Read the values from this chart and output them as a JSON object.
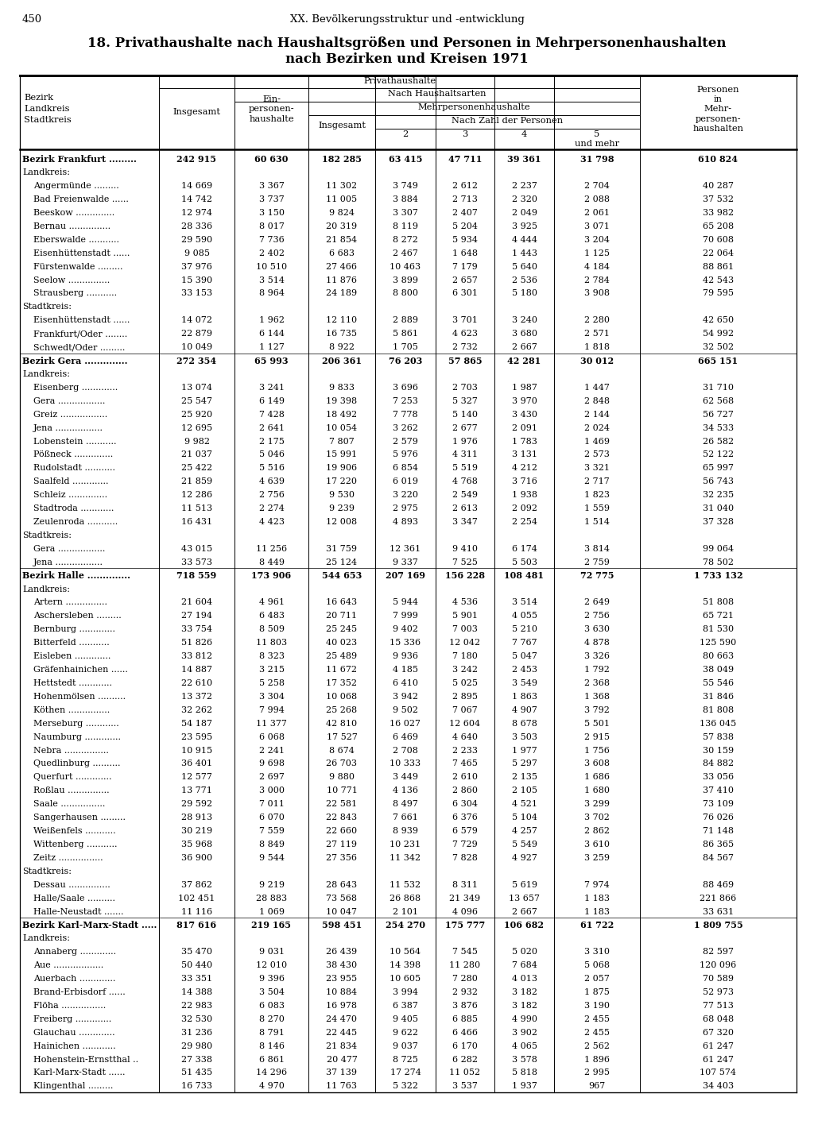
{
  "page_number": "450",
  "header_line": "XX. Bevölkerungsstruktur und -entwicklung",
  "title_line1": "18. Privathaushalte nach Haushaltsgrößen und Personen in Mehrpersonenhaushalten",
  "title_line2": "nach Bezirken und Kreisen 1971",
  "rows": [
    {
      "name": "Bezirk Frankfurt .........",
      "bold": true,
      "indent": 0,
      "vals": [
        "242 915",
        "60 630",
        "182 285",
        "63 415",
        "47 711",
        "39 361",
        "31 798",
        "610 824"
      ]
    },
    {
      "name": "Landkreis:",
      "bold": false,
      "indent": 0,
      "vals": [
        "",
        "",
        "",
        "",
        "",
        "",
        "",
        ""
      ],
      "header": true
    },
    {
      "name": "Angermünde .........",
      "bold": false,
      "indent": 1,
      "vals": [
        "14 669",
        "3 367",
        "11 302",
        "3 749",
        "2 612",
        "2 237",
        "2 704",
        "40 287"
      ]
    },
    {
      "name": "Bad Freienwalde ......",
      "bold": false,
      "indent": 1,
      "vals": [
        "14 742",
        "3 737",
        "11 005",
        "3 884",
        "2 713",
        "2 320",
        "2 088",
        "37 532"
      ]
    },
    {
      "name": "Beeskow ..............",
      "bold": false,
      "indent": 1,
      "vals": [
        "12 974",
        "3 150",
        "9 824",
        "3 307",
        "2 407",
        "2 049",
        "2 061",
        "33 982"
      ]
    },
    {
      "name": "Bernau ...............",
      "bold": false,
      "indent": 1,
      "vals": [
        "28 336",
        "8 017",
        "20 319",
        "8 119",
        "5 204",
        "3 925",
        "3 071",
        "65 208"
      ]
    },
    {
      "name": "Eberswalde ...........",
      "bold": false,
      "indent": 1,
      "vals": [
        "29 590",
        "7 736",
        "21 854",
        "8 272",
        "5 934",
        "4 444",
        "3 204",
        "70 608"
      ]
    },
    {
      "name": "Eisenhüttenstadt ......",
      "bold": false,
      "indent": 1,
      "vals": [
        "9 085",
        "2 402",
        "6 683",
        "2 467",
        "1 648",
        "1 443",
        "1 125",
        "22 064"
      ]
    },
    {
      "name": "Fürstenwalde .........",
      "bold": false,
      "indent": 1,
      "vals": [
        "37 976",
        "10 510",
        "27 466",
        "10 463",
        "7 179",
        "5 640",
        "4 184",
        "88 861"
      ]
    },
    {
      "name": "Seelow ...............",
      "bold": false,
      "indent": 1,
      "vals": [
        "15 390",
        "3 514",
        "11 876",
        "3 899",
        "2 657",
        "2 536",
        "2 784",
        "42 543"
      ]
    },
    {
      "name": "Strausberg ...........",
      "bold": false,
      "indent": 1,
      "vals": [
        "33 153",
        "8 964",
        "24 189",
        "8 800",
        "6 301",
        "5 180",
        "3 908",
        "79 595"
      ]
    },
    {
      "name": "Stadtkreis:",
      "bold": false,
      "indent": 0,
      "vals": [
        "",
        "",
        "",
        "",
        "",
        "",
        "",
        ""
      ],
      "header": true
    },
    {
      "name": "Eisenhüttenstadt ......",
      "bold": false,
      "indent": 1,
      "vals": [
        "14 072",
        "1 962",
        "12 110",
        "2 889",
        "3 701",
        "3 240",
        "2 280",
        "42 650"
      ]
    },
    {
      "name": "Frankfurt/Oder ........",
      "bold": false,
      "indent": 1,
      "vals": [
        "22 879",
        "6 144",
        "16 735",
        "5 861",
        "4 623",
        "3 680",
        "2 571",
        "54 992"
      ]
    },
    {
      "name": "Schwedt/Oder .........",
      "bold": false,
      "indent": 1,
      "vals": [
        "10 049",
        "1 127",
        "8 922",
        "1 705",
        "2 732",
        "2 667",
        "1 818",
        "32 502"
      ]
    },
    {
      "name": "Bezirk Gera ..............",
      "bold": true,
      "indent": 0,
      "vals": [
        "272 354",
        "65 993",
        "206 361",
        "76 203",
        "57 865",
        "42 281",
        "30 012",
        "665 151"
      ]
    },
    {
      "name": "Landkreis:",
      "bold": false,
      "indent": 0,
      "vals": [
        "",
        "",
        "",
        "",
        "",
        "",
        "",
        ""
      ],
      "header": true
    },
    {
      "name": "Eisenberg .............",
      "bold": false,
      "indent": 1,
      "vals": [
        "13 074",
        "3 241",
        "9 833",
        "3 696",
        "2 703",
        "1 987",
        "1 447",
        "31 710"
      ]
    },
    {
      "name": "Gera .................",
      "bold": false,
      "indent": 1,
      "vals": [
        "25 547",
        "6 149",
        "19 398",
        "7 253",
        "5 327",
        "3 970",
        "2 848",
        "62 568"
      ]
    },
    {
      "name": "Greiz .................",
      "bold": false,
      "indent": 1,
      "vals": [
        "25 920",
        "7 428",
        "18 492",
        "7 778",
        "5 140",
        "3 430",
        "2 144",
        "56 727"
      ]
    },
    {
      "name": "Jena .................",
      "bold": false,
      "indent": 1,
      "vals": [
        "12 695",
        "2 641",
        "10 054",
        "3 262",
        "2 677",
        "2 091",
        "2 024",
        "34 533"
      ]
    },
    {
      "name": "Lobenstein ...........",
      "bold": false,
      "indent": 1,
      "vals": [
        "9 982",
        "2 175",
        "7 807",
        "2 579",
        "1 976",
        "1 783",
        "1 469",
        "26 582"
      ]
    },
    {
      "name": "Pößneck ..............",
      "bold": false,
      "indent": 1,
      "vals": [
        "21 037",
        "5 046",
        "15 991",
        "5 976",
        "4 311",
        "3 131",
        "2 573",
        "52 122"
      ]
    },
    {
      "name": "Rudolstadt ...........",
      "bold": false,
      "indent": 1,
      "vals": [
        "25 422",
        "5 516",
        "19 906",
        "6 854",
        "5 519",
        "4 212",
        "3 321",
        "65 997"
      ]
    },
    {
      "name": "Saalfeld .............",
      "bold": false,
      "indent": 1,
      "vals": [
        "21 859",
        "4 639",
        "17 220",
        "6 019",
        "4 768",
        "3 716",
        "2 717",
        "56 743"
      ]
    },
    {
      "name": "Schleiz ..............",
      "bold": false,
      "indent": 1,
      "vals": [
        "12 286",
        "2 756",
        "9 530",
        "3 220",
        "2 549",
        "1 938",
        "1 823",
        "32 235"
      ]
    },
    {
      "name": "Stadtroda ............",
      "bold": false,
      "indent": 1,
      "vals": [
        "11 513",
        "2 274",
        "9 239",
        "2 975",
        "2 613",
        "2 092",
        "1 559",
        "31 040"
      ]
    },
    {
      "name": "Zeulenroda ...........",
      "bold": false,
      "indent": 1,
      "vals": [
        "16 431",
        "4 423",
        "12 008",
        "4 893",
        "3 347",
        "2 254",
        "1 514",
        "37 328"
      ]
    },
    {
      "name": "Stadtkreis:",
      "bold": false,
      "indent": 0,
      "vals": [
        "",
        "",
        "",
        "",
        "",
        "",
        "",
        ""
      ],
      "header": true
    },
    {
      "name": "Gera .................",
      "bold": false,
      "indent": 1,
      "vals": [
        "43 015",
        "11 256",
        "31 759",
        "12 361",
        "9 410",
        "6 174",
        "3 814",
        "99 064"
      ]
    },
    {
      "name": "Jena .................",
      "bold": false,
      "indent": 1,
      "vals": [
        "33 573",
        "8 449",
        "25 124",
        "9 337",
        "7 525",
        "5 503",
        "2 759",
        "78 502"
      ]
    },
    {
      "name": "Bezirk Halle ..............",
      "bold": true,
      "indent": 0,
      "vals": [
        "718 559",
        "173 906",
        "544 653",
        "207 169",
        "156 228",
        "108 481",
        "72 775",
        "1 733 132"
      ]
    },
    {
      "name": "Landkreis:",
      "bold": false,
      "indent": 0,
      "vals": [
        "",
        "",
        "",
        "",
        "",
        "",
        "",
        ""
      ],
      "header": true
    },
    {
      "name": "Artern ...............",
      "bold": false,
      "indent": 1,
      "vals": [
        "21 604",
        "4 961",
        "16 643",
        "5 944",
        "4 536",
        "3 514",
        "2 649",
        "51 808"
      ]
    },
    {
      "name": "Aschersleben .........",
      "bold": false,
      "indent": 1,
      "vals": [
        "27 194",
        "6 483",
        "20 711",
        "7 999",
        "5 901",
        "4 055",
        "2 756",
        "65 721"
      ]
    },
    {
      "name": "Bernburg .............",
      "bold": false,
      "indent": 1,
      "vals": [
        "33 754",
        "8 509",
        "25 245",
        "9 402",
        "7 003",
        "5 210",
        "3 630",
        "81 530"
      ]
    },
    {
      "name": "Bitterfeld ...........",
      "bold": false,
      "indent": 1,
      "vals": [
        "51 826",
        "11 803",
        "40 023",
        "15 336",
        "12 042",
        "7 767",
        "4 878",
        "125 590"
      ]
    },
    {
      "name": "Eisleben .............",
      "bold": false,
      "indent": 1,
      "vals": [
        "33 812",
        "8 323",
        "25 489",
        "9 936",
        "7 180",
        "5 047",
        "3 326",
        "80 663"
      ]
    },
    {
      "name": "Gräfenhainichen ......",
      "bold": false,
      "indent": 1,
      "vals": [
        "14 887",
        "3 215",
        "11 672",
        "4 185",
        "3 242",
        "2 453",
        "1 792",
        "38 049"
      ]
    },
    {
      "name": "Hettstedt ............",
      "bold": false,
      "indent": 1,
      "vals": [
        "22 610",
        "5 258",
        "17 352",
        "6 410",
        "5 025",
        "3 549",
        "2 368",
        "55 546"
      ]
    },
    {
      "name": "Hohenmölsen ..........",
      "bold": false,
      "indent": 1,
      "vals": [
        "13 372",
        "3 304",
        "10 068",
        "3 942",
        "2 895",
        "1 863",
        "1 368",
        "31 846"
      ]
    },
    {
      "name": "Köthen ...............",
      "bold": false,
      "indent": 1,
      "vals": [
        "32 262",
        "7 994",
        "25 268",
        "9 502",
        "7 067",
        "4 907",
        "3 792",
        "81 808"
      ]
    },
    {
      "name": "Merseburg ............",
      "bold": false,
      "indent": 1,
      "vals": [
        "54 187",
        "11 377",
        "42 810",
        "16 027",
        "12 604",
        "8 678",
        "5 501",
        "136 045"
      ]
    },
    {
      "name": "Naumburg .............",
      "bold": false,
      "indent": 1,
      "vals": [
        "23 595",
        "6 068",
        "17 527",
        "6 469",
        "4 640",
        "3 503",
        "2 915",
        "57 838"
      ]
    },
    {
      "name": "Nebra ................",
      "bold": false,
      "indent": 1,
      "vals": [
        "10 915",
        "2 241",
        "8 674",
        "2 708",
        "2 233",
        "1 977",
        "1 756",
        "30 159"
      ]
    },
    {
      "name": "Quedlinburg ..........",
      "bold": false,
      "indent": 1,
      "vals": [
        "36 401",
        "9 698",
        "26 703",
        "10 333",
        "7 465",
        "5 297",
        "3 608",
        "84 882"
      ]
    },
    {
      "name": "Querfurt .............",
      "bold": false,
      "indent": 1,
      "vals": [
        "12 577",
        "2 697",
        "9 880",
        "3 449",
        "2 610",
        "2 135",
        "1 686",
        "33 056"
      ]
    },
    {
      "name": "Roßlau ...............",
      "bold": false,
      "indent": 1,
      "vals": [
        "13 771",
        "3 000",
        "10 771",
        "4 136",
        "2 860",
        "2 105",
        "1 680",
        "37 410"
      ]
    },
    {
      "name": "Saale ................",
      "bold": false,
      "indent": 1,
      "vals": [
        "29 592",
        "7 011",
        "22 581",
        "8 497",
        "6 304",
        "4 521",
        "3 299",
        "73 109"
      ]
    },
    {
      "name": "Sangerhausen .........",
      "bold": false,
      "indent": 1,
      "vals": [
        "28 913",
        "6 070",
        "22 843",
        "7 661",
        "6 376",
        "5 104",
        "3 702",
        "76 026"
      ]
    },
    {
      "name": "Weißenfels ...........",
      "bold": false,
      "indent": 1,
      "vals": [
        "30 219",
        "7 559",
        "22 660",
        "8 939",
        "6 579",
        "4 257",
        "2 862",
        "71 148"
      ]
    },
    {
      "name": "Wittenberg ...........",
      "bold": false,
      "indent": 1,
      "vals": [
        "35 968",
        "8 849",
        "27 119",
        "10 231",
        "7 729",
        "5 549",
        "3 610",
        "86 365"
      ]
    },
    {
      "name": "Zeitz ................",
      "bold": false,
      "indent": 1,
      "vals": [
        "36 900",
        "9 544",
        "27 356",
        "11 342",
        "7 828",
        "4 927",
        "3 259",
        "84 567"
      ]
    },
    {
      "name": "Stadtkreis:",
      "bold": false,
      "indent": 0,
      "vals": [
        "",
        "",
        "",
        "",
        "",
        "",
        "",
        ""
      ],
      "header": true
    },
    {
      "name": "Dessau ...............",
      "bold": false,
      "indent": 1,
      "vals": [
        "37 862",
        "9 219",
        "28 643",
        "11 532",
        "8 311",
        "5 619",
        "7 974",
        "88 469"
      ]
    },
    {
      "name": "Halle/Saale ..........",
      "bold": false,
      "indent": 1,
      "vals": [
        "102 451",
        "28 883",
        "73 568",
        "26 868",
        "21 349",
        "13 657",
        "1 183",
        "221 866"
      ]
    },
    {
      "name": "Halle-Neustadt .......",
      "bold": false,
      "indent": 1,
      "vals": [
        "11 116",
        "1 069",
        "10 047",
        "2 101",
        "4 096",
        "2 667",
        "1 183",
        "33 631"
      ]
    },
    {
      "name": "Bezirk Karl-Marx-Stadt .....",
      "bold": true,
      "indent": 0,
      "vals": [
        "817 616",
        "219 165",
        "598 451",
        "254 270",
        "175 777",
        "106 682",
        "61 722",
        "1 809 755"
      ]
    },
    {
      "name": "Landkreis:",
      "bold": false,
      "indent": 0,
      "vals": [
        "",
        "",
        "",
        "",
        "",
        "",
        "",
        ""
      ],
      "header": true
    },
    {
      "name": "Annaberg .............",
      "bold": false,
      "indent": 1,
      "vals": [
        "35 470",
        "9 031",
        "26 439",
        "10 564",
        "7 545",
        "5 020",
        "3 310",
        "82 597"
      ]
    },
    {
      "name": "Aue ..................",
      "bold": false,
      "indent": 1,
      "vals": [
        "50 440",
        "12 010",
        "38 430",
        "14 398",
        "11 280",
        "7 684",
        "5 068",
        "120 096"
      ]
    },
    {
      "name": "Auerbach .............",
      "bold": false,
      "indent": 1,
      "vals": [
        "33 351",
        "9 396",
        "23 955",
        "10 605",
        "7 280",
        "4 013",
        "2 057",
        "70 589"
      ]
    },
    {
      "name": "Brand-Erbisdorf ......",
      "bold": false,
      "indent": 1,
      "vals": [
        "14 388",
        "3 504",
        "10 884",
        "3 994",
        "2 932",
        "3 182",
        "1 875",
        "52 973"
      ]
    },
    {
      "name": "Flöha ................",
      "bold": false,
      "indent": 1,
      "vals": [
        "22 983",
        "6 083",
        "16 978",
        "6 387",
        "3 876",
        "3 182",
        "3 190",
        "77 513"
      ]
    },
    {
      "name": "Freiberg .............",
      "bold": false,
      "indent": 1,
      "vals": [
        "32 530",
        "8 270",
        "24 470",
        "9 405",
        "6 885",
        "4 990",
        "2 455",
        "68 048"
      ]
    },
    {
      "name": "Glauchau .............",
      "bold": false,
      "indent": 1,
      "vals": [
        "31 236",
        "8 791",
        "22 445",
        "9 622",
        "6 466",
        "3 902",
        "2 455",
        "67 320"
      ]
    },
    {
      "name": "Hainichen ............",
      "bold": false,
      "indent": 1,
      "vals": [
        "29 980",
        "8 146",
        "21 834",
        "9 037",
        "6 170",
        "4 065",
        "2 562",
        "61 247"
      ]
    },
    {
      "name": "Hohenstein-Ernstthal ..",
      "bold": false,
      "indent": 1,
      "vals": [
        "27 338",
        "6 861",
        "20 477",
        "8 725",
        "6 282",
        "3 578",
        "1 896",
        "61 247"
      ]
    },
    {
      "name": "Karl-Marx-Stadt ......",
      "bold": false,
      "indent": 1,
      "vals": [
        "51 435",
        "14 296",
        "37 139",
        "17 274",
        "11 052",
        "5 818",
        "2 995",
        "107 574"
      ]
    },
    {
      "name": "Klingenthal .........",
      "bold": false,
      "indent": 1,
      "vals": [
        "16 733",
        "4 970",
        "11 763",
        "5 322",
        "3 537",
        "1 937",
        "967",
        "34 403"
      ]
    }
  ]
}
